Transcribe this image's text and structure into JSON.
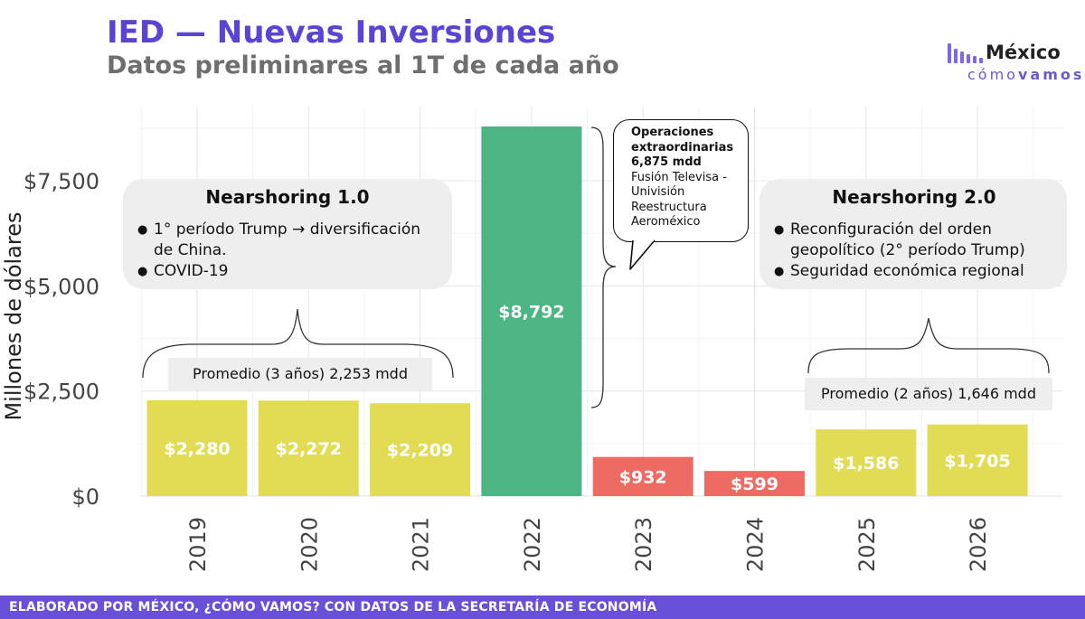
{
  "header": {
    "title": "IED — Nuevas Inversiones",
    "subtitle": "Datos preliminares al 1T de cada año"
  },
  "logo": {
    "name": "México",
    "tagline_a": "cómo",
    "tagline_b": "vamos"
  },
  "colors": {
    "title": "#5b43d6",
    "baseline": "#e2dc55",
    "extraordinary": "#4db584",
    "decline": "#ee6b64",
    "footer": "#6a4fd8"
  },
  "chart_data": {
    "type": "bar",
    "categories": [
      "2019",
      "2020",
      "2021",
      "2022",
      "2023",
      "2024",
      "2025",
      "2026"
    ],
    "values": [
      2280,
      2272,
      2209,
      8792,
      932,
      599,
      1586,
      1705
    ],
    "value_labels": [
      "$2,280",
      "$2,272",
      "$2,209",
      "$8,792",
      "$932",
      "$599",
      "$1,586",
      "$1,705"
    ],
    "bar_colors": [
      "#e2dc55",
      "#e2dc55",
      "#e2dc55",
      "#4db584",
      "#ee6b64",
      "#ee6b64",
      "#e2dc55",
      "#e2dc55"
    ],
    "ylabel": "Millones de dólares",
    "xlabel": "",
    "ylim": [
      0,
      8792
    ],
    "yticks": [
      0,
      2500,
      5000,
      7500
    ],
    "ytick_labels": [
      "$0",
      "$2,500",
      "$5,000",
      "$7,500"
    ],
    "grid": true,
    "legend": "none"
  },
  "annotations": {
    "nearshoring1": {
      "title": "Nearshoring 1.0",
      "bullets": [
        "1° período Trump → diversificación de China.",
        "COVID-19"
      ]
    },
    "nearshoring2": {
      "title": "Nearshoring 2.0",
      "bullets": [
        "Reconfiguración del orden geopolítico (2° período Trump)",
        "Seguridad económica regional"
      ]
    },
    "avg1": "Promedio (3 años) 2,253 mdd",
    "avg2": "Promedio (2 años) 1,646 mdd",
    "callout": {
      "line1": "Operaciones extraordinarias",
      "line2": "6,875 mdd",
      "line3": "Fusión Televisa - Univisión",
      "line4": "Reestructura Aeroméxico"
    }
  },
  "footer": {
    "text": "ELABORADO POR MÉXICO, ¿CÓMO VAMOS? CON DATOS DE LA SECRETARÍA DE ECONOMÍA"
  }
}
